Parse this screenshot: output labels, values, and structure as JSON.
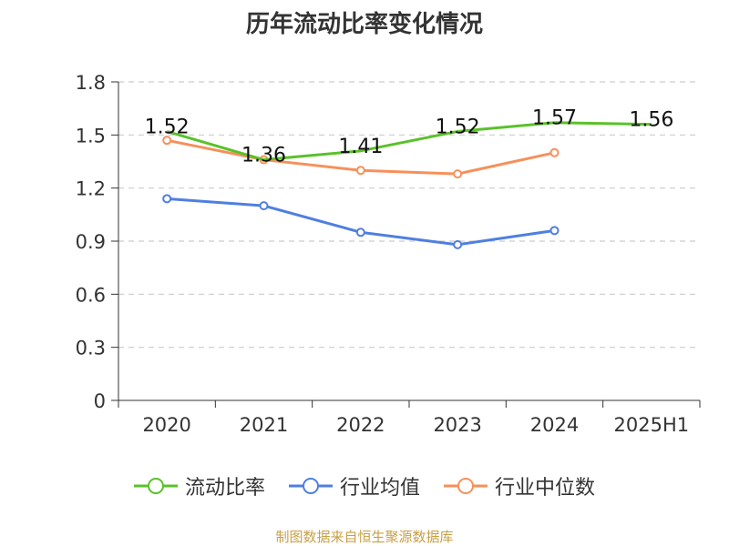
{
  "title": "历年流动比率变化情况",
  "source": "制图数据来自恒生聚源数据库",
  "colors": {
    "current_ratio": "#5ac12a",
    "industry_mean": "#4f7fe0",
    "industry_median": "#f6905a",
    "grid": "#cccccc",
    "axis": "#333333"
  },
  "chart_data": {
    "type": "line",
    "title": "历年流动比率变化情况",
    "categories": [
      "2020",
      "2021",
      "2022",
      "2023",
      "2024",
      "2025H1"
    ],
    "yticks": [
      "0",
      "0.3",
      "0.6",
      "0.9",
      "1.2",
      "1.5",
      "1.8"
    ],
    "ylim": [
      0,
      1.8
    ],
    "grid": true,
    "legend_position": "bottom",
    "series": [
      {
        "name": "流动比率",
        "values": [
          1.52,
          1.36,
          1.41,
          1.52,
          1.57,
          1.56
        ],
        "labels": [
          "1.52",
          "1.36",
          "1.41",
          "1.52",
          "1.57",
          "1.56"
        ],
        "markers": false
      },
      {
        "name": "行业均值",
        "values": [
          1.14,
          1.1,
          0.95,
          0.88,
          0.96,
          null
        ],
        "markers": true
      },
      {
        "name": "行业中位数",
        "values": [
          1.47,
          1.36,
          1.3,
          1.28,
          1.4,
          null
        ],
        "markers": true
      }
    ]
  }
}
